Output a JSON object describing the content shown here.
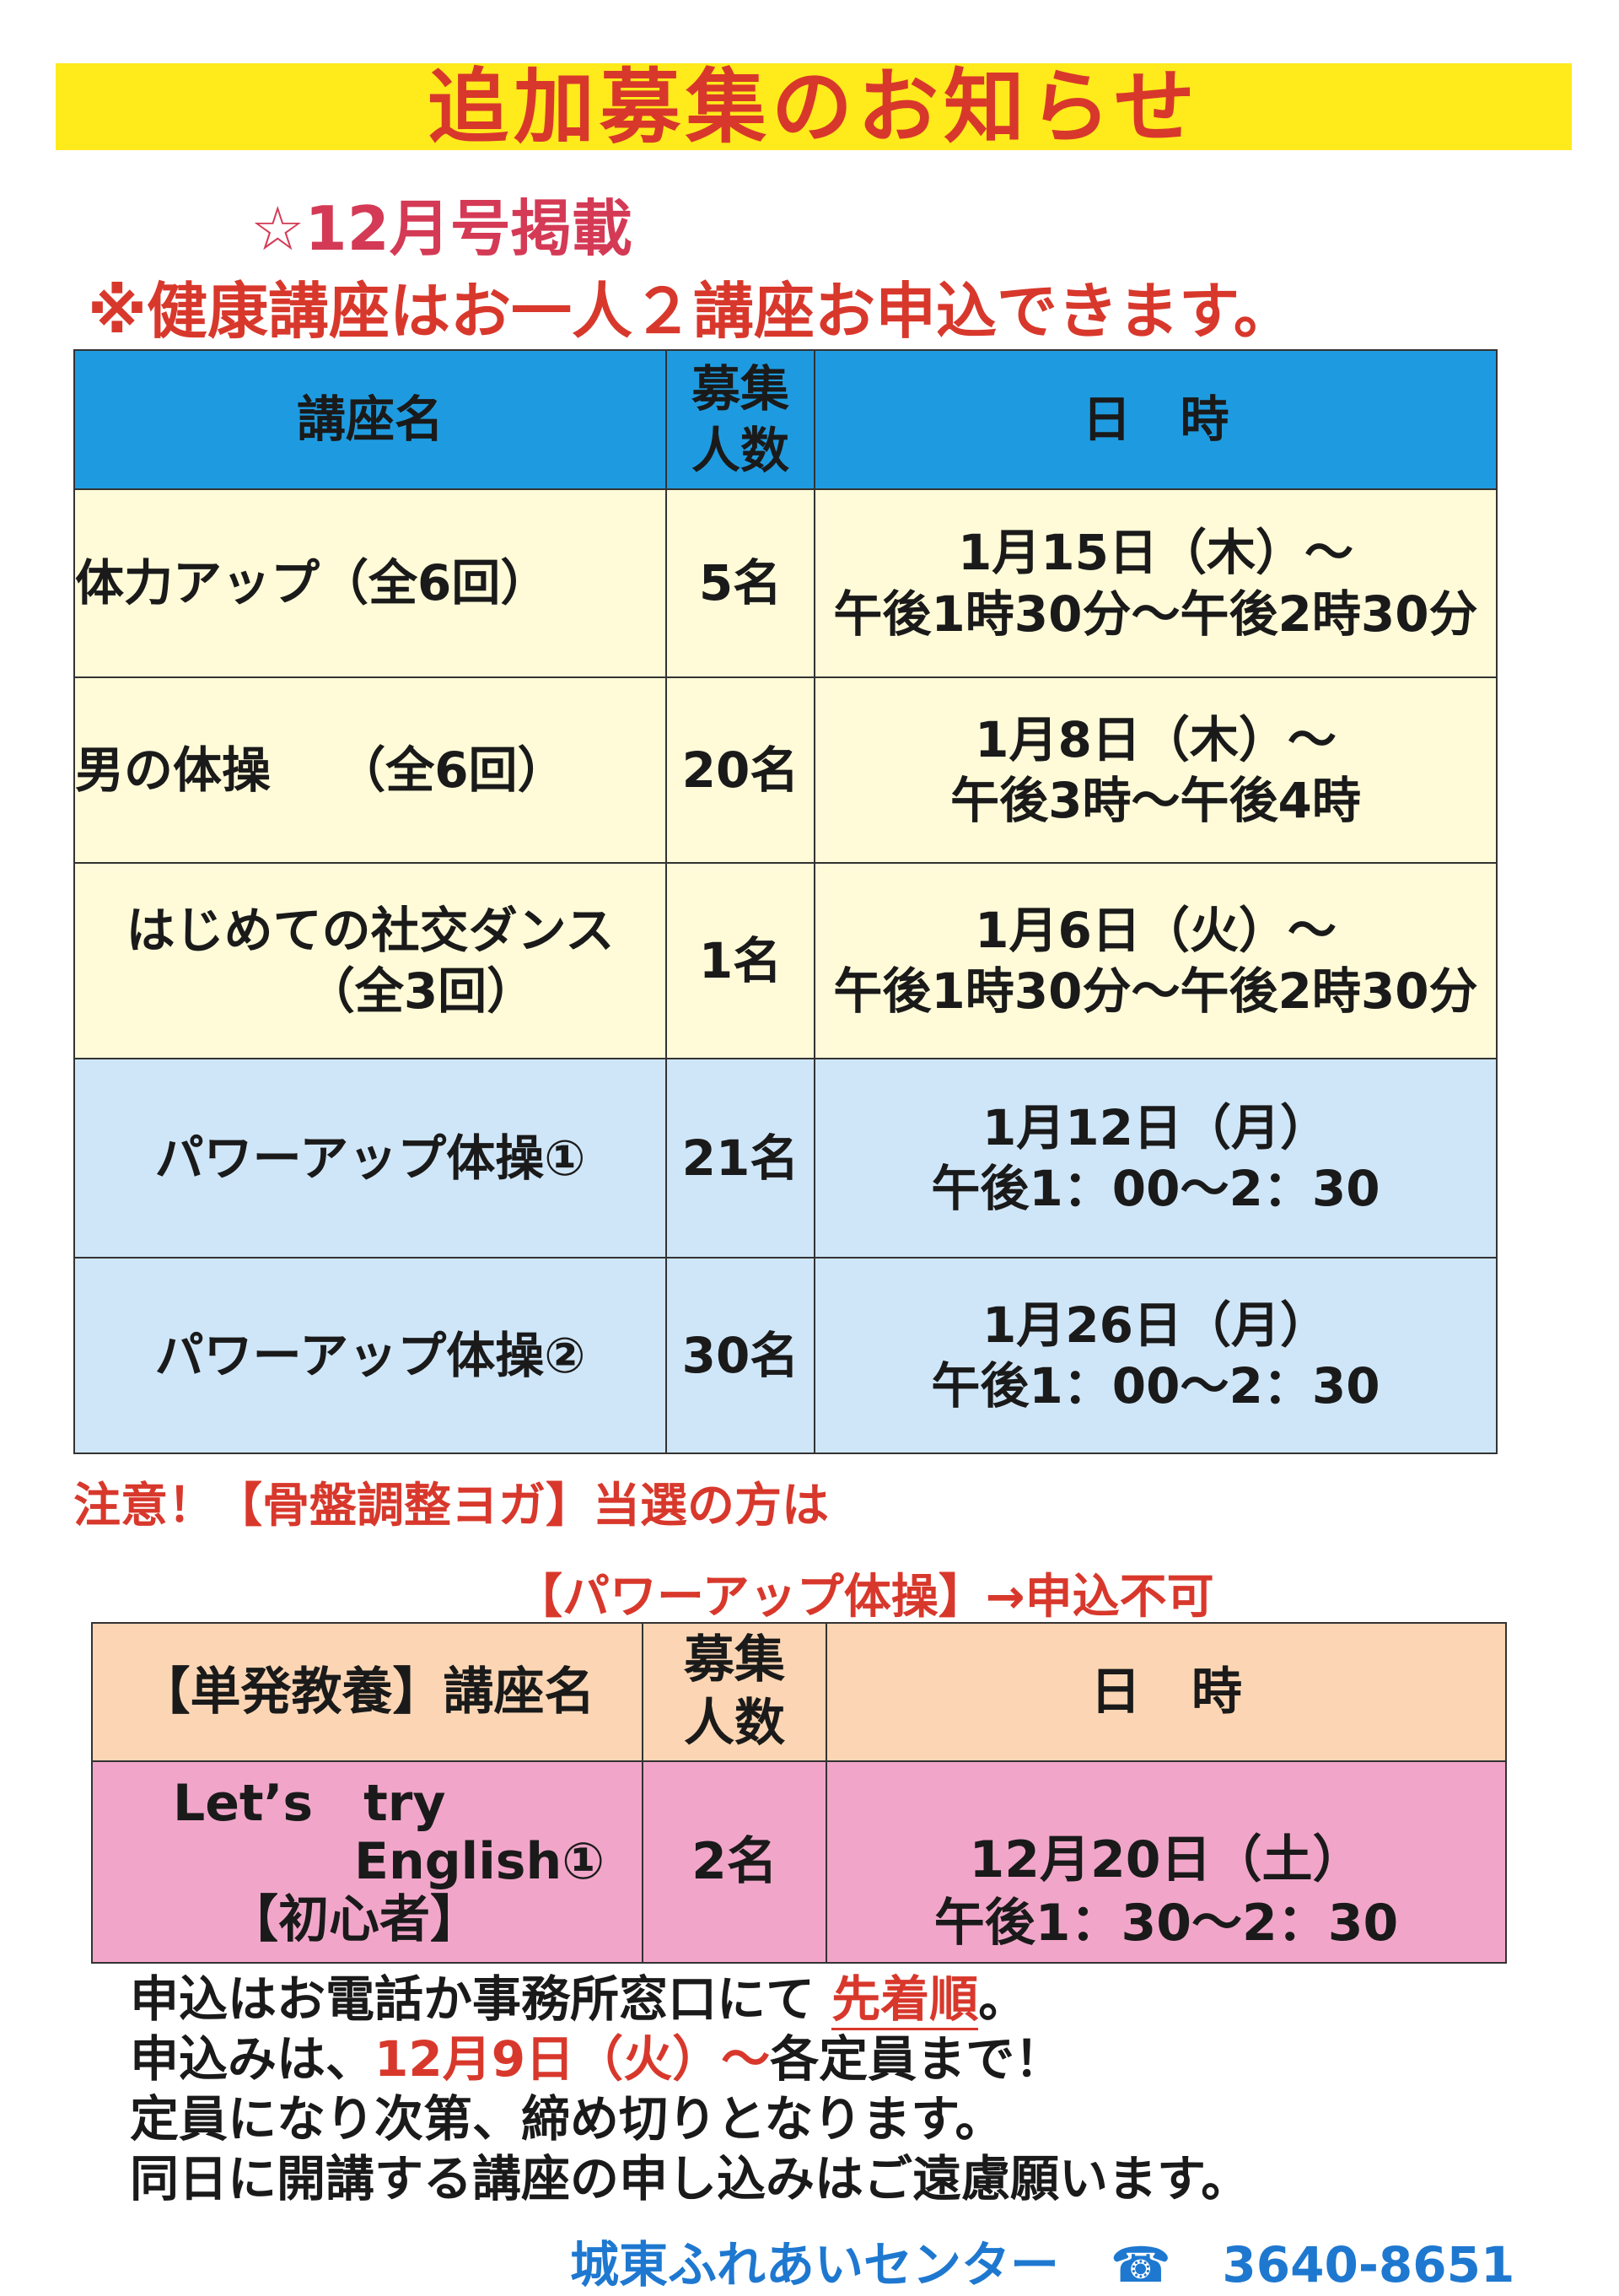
{
  "title": "追加募集のお知らせ",
  "issue": "☆12月号掲載",
  "notice": "※健康講座はお一人２講座お申込できます。",
  "colors": {
    "banner": "#ffea1c",
    "title_text": "#d8382c",
    "header_blue": "#1e9be0",
    "cream": "#fffbd8",
    "light_blue": "#cfe6f8",
    "peach": "#fcd6b4",
    "pink": "#f1a6c9",
    "footer": "#1e78d0"
  },
  "table1": {
    "headers": {
      "name": "講座名",
      "capacity_1": "募集",
      "capacity_2": "人数",
      "datetime": "日　時"
    },
    "rows": [
      {
        "name": "体力アップ（全6回）",
        "capacity": "5名",
        "date": "1月15日（木）～",
        "time": "午後1時30分～午後2時30分"
      },
      {
        "name": "男の体操　 （全6回）",
        "capacity": "20名",
        "date": "1月8日（木）～",
        "time": "午後3時～午後4時"
      },
      {
        "name": "はじめての社交ダンス",
        "name2": "（全3回）",
        "capacity": "1名",
        "date": "1月6日（火）～",
        "time": "午後1時30分～午後2時30分"
      },
      {
        "name": "パワーアップ体操①",
        "capacity": "21名",
        "date": "1月12日（月）",
        "time": "午後1：00～2：30"
      },
      {
        "name": "パワーアップ体操②",
        "capacity": "30名",
        "date": "1月26日（月）",
        "time": "午後1：00～2：30"
      }
    ]
  },
  "caution_1": "注意！【骨盤調整ヨガ】当選の方は",
  "caution_2": "【パワーアップ体操】→申込不可",
  "table2": {
    "headers": {
      "name": "【単発教養】講座名",
      "capacity_1": "募集",
      "capacity_2": "人数",
      "datetime": "日　時"
    },
    "row": {
      "name_1": "Let’s　try",
      "name_2": "English①",
      "name_3": "【初心者】",
      "capacity": "2名",
      "date": "12月20日（土）",
      "time": "午後1：30～2：30"
    }
  },
  "info": {
    "line1_a": "申込はお電話か事務所窓口にて ",
    "line1_b": "先着順",
    "line1_c": "。",
    "line2_a": "申込みは、",
    "line2_b": "12月9日（火）～",
    "line2_c": "各定員まで！",
    "line3": "定員になり次第、締め切りとなります。",
    "line4": "同日に開講する講座の申し込みはご遠慮願います。"
  },
  "footer": {
    "center": "城東ふれあいセンター",
    "phone_icon": "☎",
    "phone": "3640-8651"
  }
}
